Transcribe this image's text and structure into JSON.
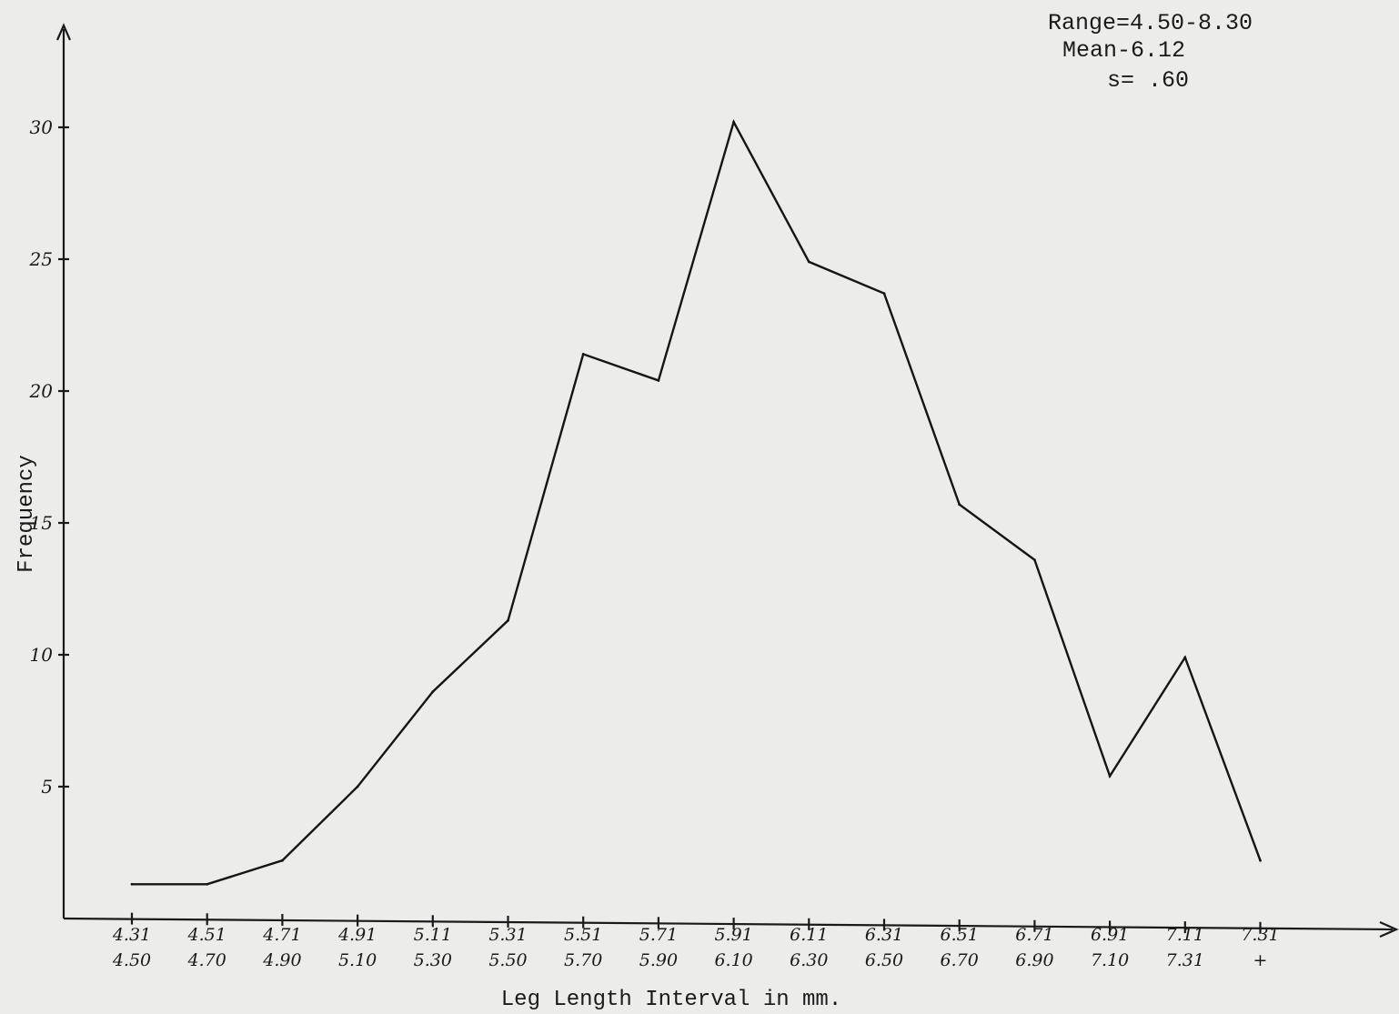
{
  "chart_data": {
    "type": "line",
    "title": "",
    "xlabel": "Leg Length Interval in mm.",
    "ylabel": "Frequency",
    "categories": [
      {
        "top": "4.31",
        "bottom": "4.50"
      },
      {
        "top": "4.51",
        "bottom": "4.70"
      },
      {
        "top": "4.71",
        "bottom": "4.90"
      },
      {
        "top": "4.91",
        "bottom": "5.10"
      },
      {
        "top": "5.11",
        "bottom": "5.30"
      },
      {
        "top": "5.31",
        "bottom": "5.50"
      },
      {
        "top": "5.51",
        "bottom": "5.70"
      },
      {
        "top": "5.71",
        "bottom": "5.90"
      },
      {
        "top": "5.91",
        "bottom": "6.10"
      },
      {
        "top": "6.11",
        "bottom": "6.30"
      },
      {
        "top": "6.31",
        "bottom": "6.50"
      },
      {
        "top": "6.51",
        "bottom": "6.70"
      },
      {
        "top": "6.71",
        "bottom": "6.90"
      },
      {
        "top": "6.91",
        "bottom": "7.10"
      },
      {
        "top": "7.11",
        "bottom": "7.31"
      },
      {
        "top": "7.31",
        "bottom": "+"
      }
    ],
    "values": [
      1.3,
      1.3,
      2.2,
      5.0,
      8.6,
      11.3,
      21.4,
      20.4,
      30.2,
      24.9,
      23.7,
      15.7,
      13.6,
      5.4,
      9.9,
      2.2
    ],
    "yticks": [
      5,
      10,
      15,
      20,
      25,
      30
    ],
    "ylim": [
      0,
      34
    ],
    "grid": false,
    "legend": "none",
    "stats": {
      "range": "Range=4.50-8.30",
      "mean": "Mean-6.12",
      "s": "s= .60"
    },
    "colors": {
      "background": "#ececea",
      "ink": "#1a1a1a"
    }
  }
}
